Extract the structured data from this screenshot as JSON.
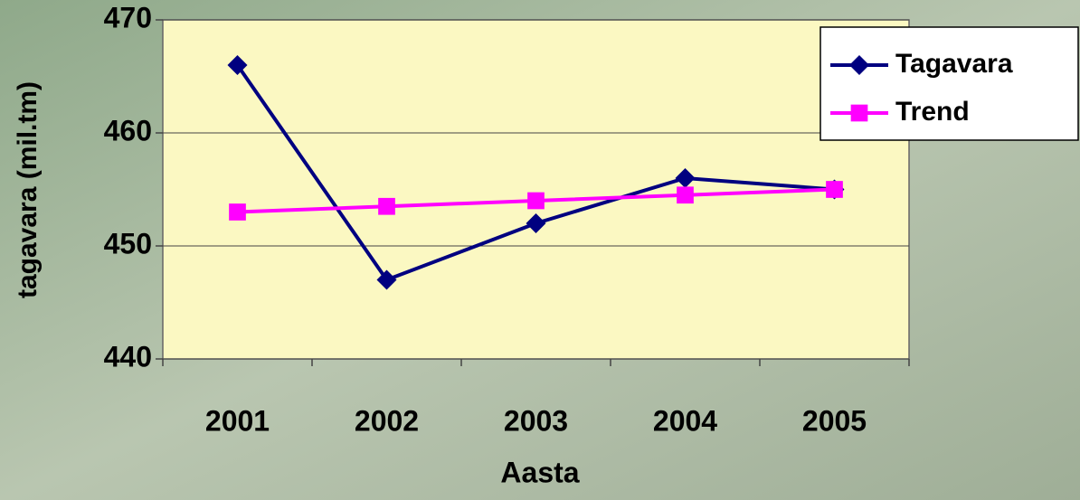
{
  "chart_data": {
    "type": "line",
    "categories": [
      "2001",
      "2002",
      "2003",
      "2004",
      "2005"
    ],
    "series": [
      {
        "name": "Tagavara",
        "color": "#000080",
        "marker": "diamond",
        "values": [
          466,
          447,
          452,
          456,
          455
        ]
      },
      {
        "name": "Trend",
        "color": "#ff00ff",
        "marker": "square",
        "values": [
          453,
          453.5,
          454,
          454.5,
          455
        ]
      }
    ],
    "x_label": "Aasta",
    "y_label": "tagavara (mil.tm)",
    "ylim": [
      440,
      470
    ],
    "yticks": [
      440,
      450,
      460,
      470
    ],
    "grid": true,
    "legend": "upper right"
  }
}
